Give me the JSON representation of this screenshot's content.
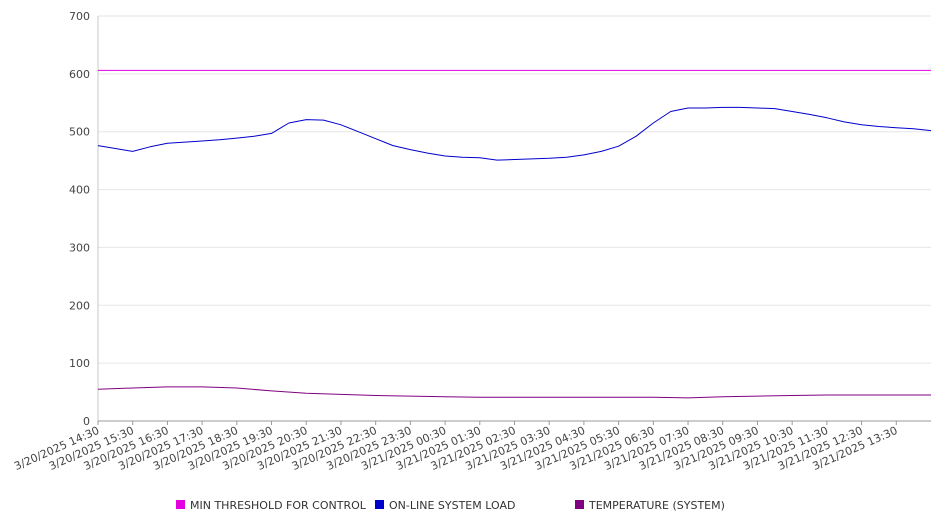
{
  "chart_data": {
    "type": "line",
    "title": "",
    "xlabel": "",
    "ylabel": "",
    "ylim": [
      0,
      700
    ],
    "yticks": [
      0,
      100,
      200,
      300,
      400,
      500,
      600,
      700
    ],
    "grid": true,
    "legend_position": "bottom",
    "x_tick_labels": [
      "3/20/2025 14:30",
      "3/20/2025 15:30",
      "3/20/2025 16:30",
      "3/20/2025 17:30",
      "3/20/2025 18:30",
      "3/20/2025 19:30",
      "3/20/2025 20:30",
      "3/20/2025 21:30",
      "3/20/2025 22:30",
      "3/20/2025 23:30",
      "3/21/2025 00:30",
      "3/21/2025 01:30",
      "3/21/2025 02:30",
      "3/21/2025 03:30",
      "3/21/2025 04:30",
      "3/21/2025 05:30",
      "3/21/2025 06:30",
      "3/21/2025 07:30",
      "3/21/2025 08:30",
      "3/21/2025 09:30",
      "3/21/2025 10:30",
      "3/21/2025 11:30",
      "3/21/2025 12:30",
      "3/21/2025 13:30"
    ],
    "x_range": [
      "3/20/2025 14:30",
      "3/21/2025 14:30"
    ],
    "series": [
      {
        "name": "MIN THRESHOLD FOR CONTROL",
        "color": "#e000e0",
        "points": [
          [
            "3/20/2025 14:30",
            606
          ],
          [
            "3/21/2025 14:30",
            606
          ]
        ]
      },
      {
        "name": "ON-LINE SYSTEM LOAD",
        "color": "#0000cc",
        "points": [
          [
            "3/20/2025 14:30",
            476
          ],
          [
            "3/20/2025 15:00",
            471
          ],
          [
            "3/20/2025 15:30",
            466
          ],
          [
            "3/20/2025 16:00",
            474
          ],
          [
            "3/20/2025 16:30",
            480
          ],
          [
            "3/20/2025 17:00",
            482
          ],
          [
            "3/20/2025 17:30",
            484
          ],
          [
            "3/20/2025 18:00",
            486
          ],
          [
            "3/20/2025 18:30",
            489
          ],
          [
            "3/20/2025 19:00",
            492
          ],
          [
            "3/20/2025 19:30",
            497
          ],
          [
            "3/20/2025 20:00",
            515
          ],
          [
            "3/20/2025 20:30",
            521
          ],
          [
            "3/20/2025 21:00",
            520
          ],
          [
            "3/20/2025 21:30",
            512
          ],
          [
            "3/20/2025 22:00",
            500
          ],
          [
            "3/20/2025 22:30",
            488
          ],
          [
            "3/20/2025 23:00",
            476
          ],
          [
            "3/20/2025 23:30",
            469
          ],
          [
            "3/21/2025 00:00",
            463
          ],
          [
            "3/21/2025 00:30",
            458
          ],
          [
            "3/21/2025 01:00",
            456
          ],
          [
            "3/21/2025 01:30",
            455
          ],
          [
            "3/21/2025 02:00",
            451
          ],
          [
            "3/21/2025 02:30",
            452
          ],
          [
            "3/21/2025 03:00",
            453
          ],
          [
            "3/21/2025 03:30",
            454
          ],
          [
            "3/21/2025 04:00",
            456
          ],
          [
            "3/21/2025 04:30",
            460
          ],
          [
            "3/21/2025 05:00",
            466
          ],
          [
            "3/21/2025 05:30",
            475
          ],
          [
            "3/21/2025 06:00",
            492
          ],
          [
            "3/21/2025 06:30",
            515
          ],
          [
            "3/21/2025 07:00",
            535
          ],
          [
            "3/21/2025 07:30",
            541
          ],
          [
            "3/21/2025 08:00",
            541
          ],
          [
            "3/21/2025 08:30",
            542
          ],
          [
            "3/21/2025 09:00",
            542
          ],
          [
            "3/21/2025 09:30",
            541
          ],
          [
            "3/21/2025 10:00",
            540
          ],
          [
            "3/21/2025 10:30",
            535
          ],
          [
            "3/21/2025 11:00",
            530
          ],
          [
            "3/21/2025 11:30",
            524
          ],
          [
            "3/21/2025 12:00",
            517
          ],
          [
            "3/21/2025 12:30",
            512
          ],
          [
            "3/21/2025 13:00",
            509
          ],
          [
            "3/21/2025 13:30",
            507
          ],
          [
            "3/21/2025 14:00",
            505
          ],
          [
            "3/21/2025 14:30",
            502
          ]
        ]
      },
      {
        "name": "TEMPERATURE (SYSTEM)",
        "color": "#800080",
        "points": [
          [
            "3/20/2025 14:30",
            55
          ],
          [
            "3/20/2025 15:30",
            57
          ],
          [
            "3/20/2025 16:30",
            59
          ],
          [
            "3/20/2025 17:30",
            59
          ],
          [
            "3/20/2025 18:30",
            57
          ],
          [
            "3/20/2025 19:30",
            52
          ],
          [
            "3/20/2025 20:30",
            48
          ],
          [
            "3/20/2025 21:30",
            46
          ],
          [
            "3/20/2025 22:30",
            44
          ],
          [
            "3/20/2025 23:30",
            43
          ],
          [
            "3/21/2025 00:30",
            42
          ],
          [
            "3/21/2025 01:30",
            41
          ],
          [
            "3/21/2025 02:30",
            41
          ],
          [
            "3/21/2025 03:30",
            41
          ],
          [
            "3/21/2025 04:30",
            41
          ],
          [
            "3/21/2025 05:30",
            41
          ],
          [
            "3/21/2025 06:30",
            41
          ],
          [
            "3/21/2025 07:30",
            40
          ],
          [
            "3/21/2025 08:30",
            42
          ],
          [
            "3/21/2025 09:30",
            43
          ],
          [
            "3/21/2025 10:30",
            44
          ],
          [
            "3/21/2025 11:30",
            45
          ],
          [
            "3/21/2025 12:30",
            45
          ],
          [
            "3/21/2025 13:30",
            45
          ],
          [
            "3/21/2025 14:30",
            45
          ]
        ]
      }
    ]
  }
}
